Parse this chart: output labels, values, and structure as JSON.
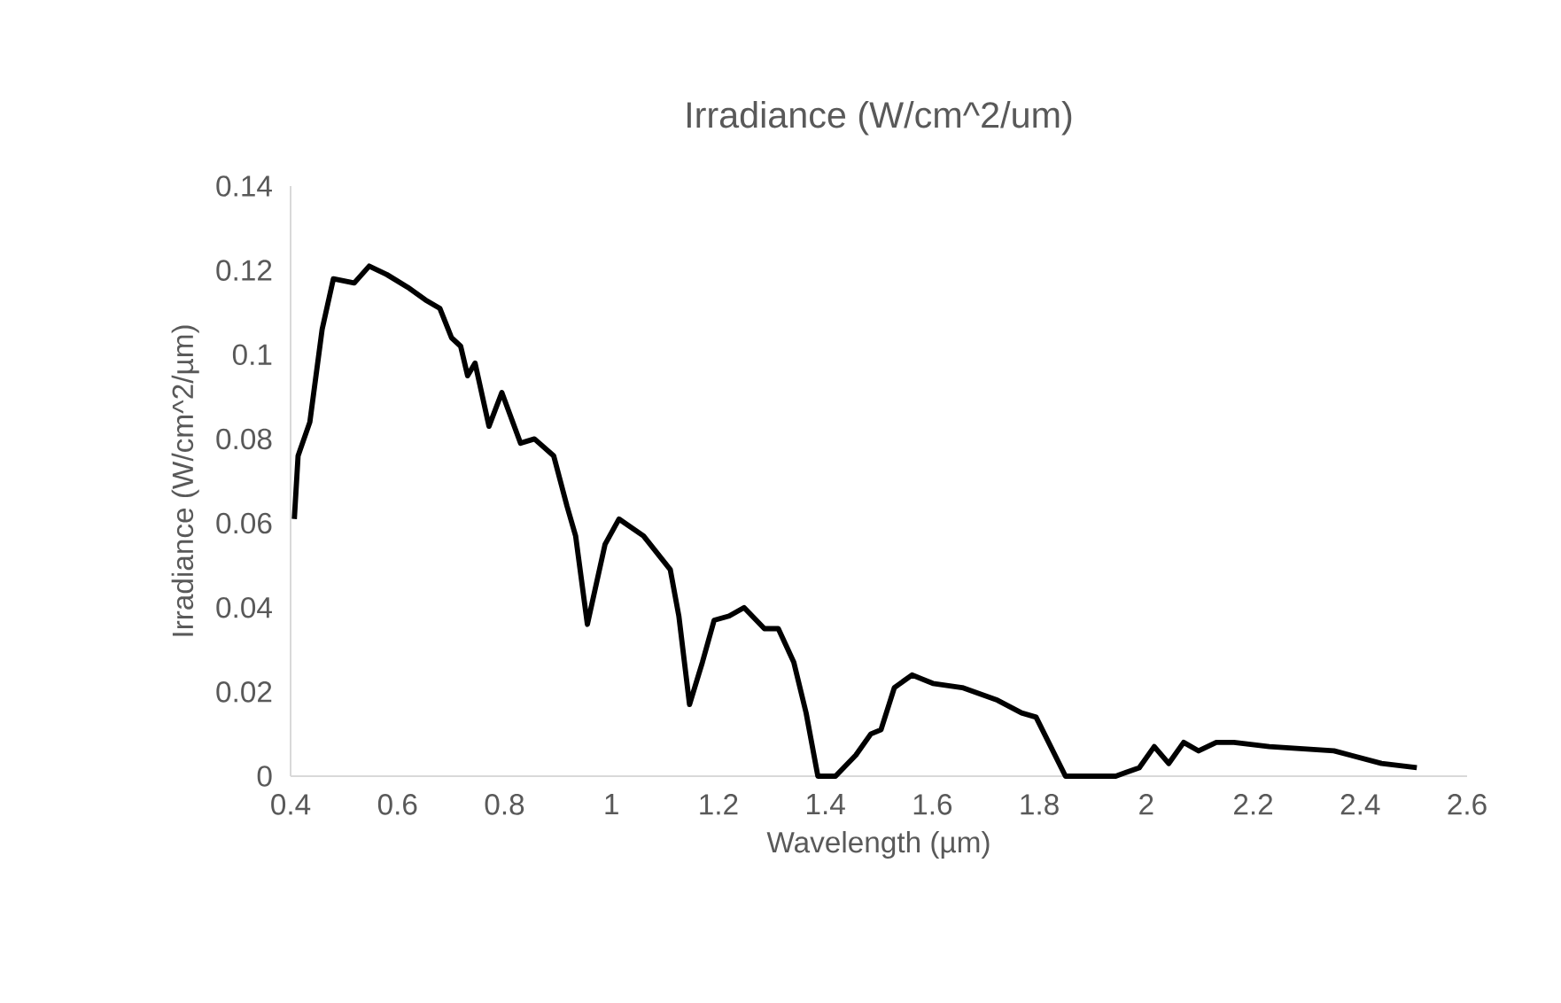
{
  "chart_data": {
    "type": "line",
    "title": "Irradiance (W/cm^2/um)",
    "xlabel": "Wavelength (µm)",
    "ylabel": "Irradiance (W/cm^2/µm)",
    "x": [
      0.407,
      0.414,
      0.436,
      0.459,
      0.48,
      0.519,
      0.547,
      0.58,
      0.619,
      0.652,
      0.679,
      0.701,
      0.718,
      0.731,
      0.745,
      0.771,
      0.795,
      0.83,
      0.856,
      0.892,
      0.917,
      0.933,
      0.955,
      0.988,
      1.014,
      1.06,
      1.11,
      1.126,
      1.146,
      1.17,
      1.192,
      1.22,
      1.248,
      1.286,
      1.312,
      1.341,
      1.364,
      1.386,
      1.419,
      1.457,
      1.485,
      1.504,
      1.529,
      1.562,
      1.601,
      1.656,
      1.722,
      1.767,
      1.794,
      1.849,
      1.943,
      1.987,
      2.015,
      2.042,
      2.07,
      2.098,
      2.131,
      2.164,
      2.23,
      2.351,
      2.44,
      2.506
    ],
    "values": [
      0.061,
      0.076,
      0.084,
      0.106,
      0.118,
      0.117,
      0.121,
      0.119,
      0.116,
      0.113,
      0.111,
      0.104,
      0.102,
      0.095,
      0.098,
      0.083,
      0.091,
      0.079,
      0.08,
      0.076,
      0.064,
      0.057,
      0.036,
      0.055,
      0.061,
      0.057,
      0.049,
      0.038,
      0.017,
      0.027,
      0.037,
      0.038,
      0.04,
      0.035,
      0.035,
      0.027,
      0.015,
      0,
      0,
      0.005,
      0.01,
      0.011,
      0.021,
      0.024,
      0.022,
      0.021,
      0.018,
      0.015,
      0.014,
      0,
      0,
      0.002,
      0.007,
      0.003,
      0.008,
      0.006,
      0.008,
      0.008,
      0.007,
      0.006,
      0.003,
      0.002
    ],
    "color": "#000000",
    "xlim": [
      0.4,
      2.6
    ],
    "xticks": [
      0.4,
      0.6,
      0.8,
      1,
      1.2,
      1.4,
      1.6,
      1.8,
      2,
      2.2,
      2.4,
      2.6
    ],
    "ylim": [
      0,
      0.14
    ],
    "yticks": [
      0,
      0.02,
      0.04,
      0.06,
      0.08,
      0.1,
      0.12,
      0.14
    ]
  }
}
